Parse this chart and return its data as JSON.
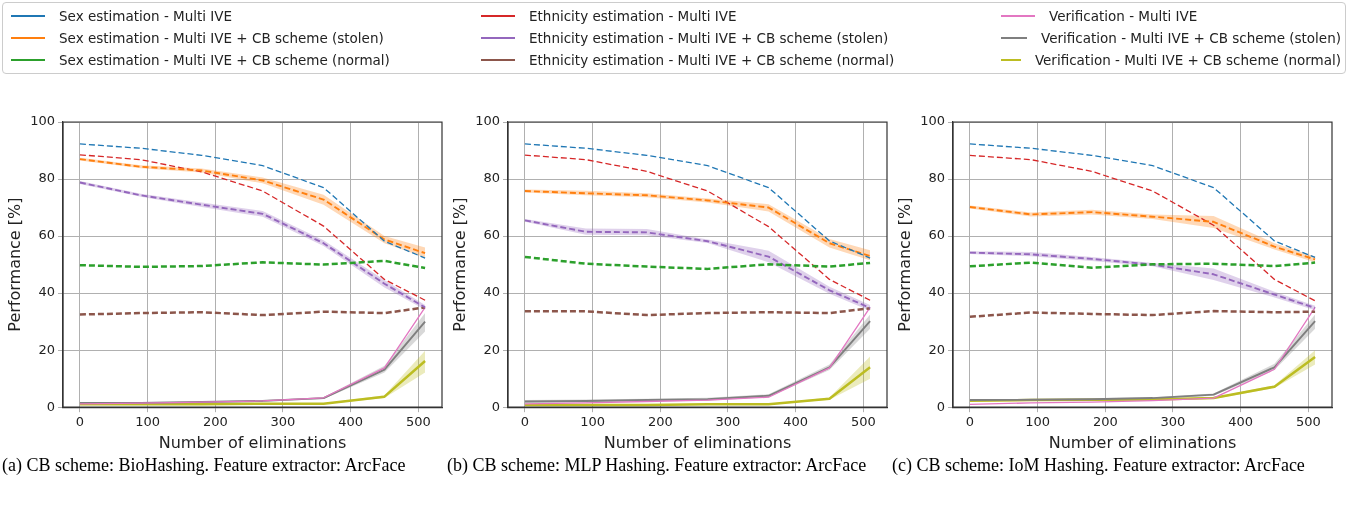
{
  "chart_data": [
    {
      "type": "line",
      "xlabel": "Number of eliminations",
      "ylabel": "Performance [%]",
      "x": [
        0,
        90,
        180,
        270,
        360,
        450,
        510
      ],
      "xlim": [
        -25,
        535
      ],
      "xticks": [
        0,
        100,
        200,
        300,
        400,
        500
      ],
      "ylim": [
        0,
        100
      ],
      "yticks": [
        0,
        20,
        40,
        60,
        80,
        100
      ],
      "grid": true,
      "legend": "top",
      "marker": "none",
      "annotations": [
        "(a) CB scheme: BioHashing. Feature extractor: ArcFace"
      ],
      "series": [
        {
          "name": "Sex estimation - Multi IVE",
          "color": "#1f77b4",
          "line_style": "dashed",
          "values": [
            92.3,
            90.8,
            88.3,
            84.7,
            77,
            58.2,
            52.3
          ]
        },
        {
          "name": "Sex estimation - Multi IVE + CB scheme (stolen)",
          "color": "#ff7f0e",
          "line_style": "dashed",
          "values": [
            87,
            84.3,
            83,
            79.5,
            72.8,
            58.8,
            54
          ],
          "lower": [
            86.5,
            83.8,
            82.3,
            78.5,
            71,
            57.5,
            52.5
          ],
          "upper": [
            87.5,
            84.8,
            83.7,
            80.5,
            74.5,
            60,
            56
          ]
        },
        {
          "name": "Sex estimation - Multi IVE + CB scheme (normal)",
          "color": "#2ca02c",
          "line_style": "dashed",
          "values": [
            49.8,
            49.2,
            49.5,
            50.8,
            50,
            51.3,
            48.8
          ]
        },
        {
          "name": "Ethnicity estimation - Multi IVE",
          "color": "#d62728",
          "line_style": "dashed",
          "values": [
            88.5,
            86.8,
            82.5,
            75.8,
            63.5,
            44.8,
            37.5
          ]
        },
        {
          "name": "Ethnicity estimation - Multi IVE + CB scheme (stolen)",
          "color": "#9467bd",
          "line_style": "dashed",
          "values": [
            78.8,
            74.3,
            71,
            67.8,
            57.5,
            43.3,
            35
          ],
          "lower": [
            78.3,
            73.8,
            70.2,
            66.8,
            56.5,
            42,
            34.2
          ],
          "upper": [
            79.3,
            74.8,
            71.8,
            68.8,
            58.5,
            44.6,
            35.8
          ]
        },
        {
          "name": "Ethnicity estimation - Multi IVE + CB scheme (normal)",
          "color": "#8c564b",
          "line_style": "dashed",
          "values": [
            32.5,
            33,
            33.3,
            32.3,
            33.5,
            33,
            35
          ]
        },
        {
          "name": "Verification - Multi IVE",
          "color": "#e377c2",
          "line_style": "solid",
          "values": [
            1.2,
            1.4,
            1.8,
            2.2,
            3.3,
            13.8,
            35
          ]
        },
        {
          "name": "Verification - Multi IVE + CB scheme (stolen)",
          "color": "#7f7f7f",
          "line_style": "solid",
          "values": [
            1.5,
            1.5,
            1.8,
            2.2,
            3.2,
            13.2,
            30
          ],
          "lower": [
            1.2,
            1.2,
            1.5,
            1.9,
            2.9,
            12.2,
            26.5
          ],
          "upper": [
            1.8,
            1.8,
            2.1,
            2.5,
            3.5,
            14.5,
            33
          ]
        },
        {
          "name": "Verification - Multi IVE + CB scheme (normal)",
          "color": "#bcbd22",
          "line_style": "solid",
          "values": [
            1,
            1,
            1,
            1.2,
            1.2,
            3.7,
            16.2
          ],
          "lower": [
            0.8,
            0.8,
            0.8,
            1,
            1,
            3.2,
            12.2
          ],
          "upper": [
            1.2,
            1.2,
            1.2,
            1.4,
            1.4,
            4.2,
            19.8
          ]
        }
      ]
    },
    {
      "type": "line",
      "xlabel": "Number of eliminations",
      "ylabel": "Performance [%]",
      "x": [
        0,
        90,
        180,
        270,
        360,
        450,
        510
      ],
      "xlim": [
        -25,
        535
      ],
      "xticks": [
        0,
        100,
        200,
        300,
        400,
        500
      ],
      "ylim": [
        0,
        100
      ],
      "yticks": [
        0,
        20,
        40,
        60,
        80,
        100
      ],
      "grid": true,
      "marker": "none",
      "annotations": [
        "(b) CB scheme: MLP Hashing. Feature extractor: ArcFace"
      ],
      "series": [
        {
          "color": "#1f77b4",
          "line_style": "dashed",
          "values": [
            92.3,
            90.8,
            88.3,
            84.7,
            77,
            58.3,
            52.3
          ]
        },
        {
          "color": "#ff7f0e",
          "line_style": "dashed",
          "values": [
            75.8,
            75,
            74.3,
            72.5,
            70,
            57.5,
            53
          ],
          "lower": [
            75.3,
            74.3,
            73.6,
            71.8,
            68.6,
            56,
            51.5
          ],
          "upper": [
            76.3,
            75.9,
            75,
            73.2,
            71.2,
            59,
            55
          ]
        },
        {
          "color": "#2ca02c",
          "line_style": "dashed",
          "values": [
            52.7,
            50.3,
            49.3,
            48.5,
            50.1,
            49.3,
            50.6
          ]
        },
        {
          "color": "#d62728",
          "line_style": "dashed",
          "values": [
            88.4,
            86.8,
            82.7,
            75.8,
            63.3,
            44.8,
            37.5
          ]
        },
        {
          "color": "#9467bd",
          "line_style": "dashed",
          "values": [
            65.5,
            61.5,
            61.3,
            58.2,
            52.8,
            41,
            34.8
          ],
          "lower": [
            65,
            60.5,
            60.3,
            57.6,
            50.8,
            39.8,
            33.8
          ],
          "upper": [
            66,
            62.7,
            62.5,
            58.8,
            54.9,
            42.2,
            35.8
          ]
        },
        {
          "color": "#8c564b",
          "line_style": "dashed",
          "values": [
            33.6,
            33.6,
            32.3,
            33,
            33.3,
            33,
            34.7
          ]
        },
        {
          "color": "#e377c2",
          "line_style": "solid",
          "values": [
            1.2,
            1.5,
            2,
            2.5,
            3.5,
            13.8,
            35
          ]
        },
        {
          "color": "#7f7f7f",
          "line_style": "solid",
          "values": [
            2,
            2.2,
            2.5,
            2.8,
            4,
            14,
            30.2
          ],
          "lower": [
            1.5,
            1.7,
            2,
            2.3,
            3.5,
            13,
            27.5
          ],
          "upper": [
            2.5,
            2.7,
            3,
            3.3,
            4.5,
            15,
            32.5
          ]
        },
        {
          "color": "#bcbd22",
          "line_style": "solid",
          "values": [
            0.8,
            0.8,
            0.8,
            1,
            1,
            3,
            14
          ],
          "lower": [
            0.6,
            0.6,
            0.6,
            0.8,
            0.8,
            2.6,
            10
          ],
          "upper": [
            1,
            1,
            1,
            1.2,
            1.2,
            3.4,
            17.8
          ]
        }
      ]
    },
    {
      "type": "line",
      "xlabel": "Number of eliminations",
      "ylabel": "Performance [%]",
      "x": [
        0,
        90,
        180,
        270,
        360,
        450,
        510
      ],
      "xlim": [
        -25,
        535
      ],
      "xticks": [
        0,
        100,
        200,
        300,
        400,
        500
      ],
      "ylim": [
        0,
        100
      ],
      "yticks": [
        0,
        20,
        40,
        60,
        80,
        100
      ],
      "grid": true,
      "marker": "none",
      "annotations": [
        "(c) CB scheme: IoM Hashing. Feature extractor: ArcFace"
      ],
      "series": [
        {
          "color": "#1f77b4",
          "line_style": "dashed",
          "values": [
            92.3,
            90.8,
            88.3,
            84.7,
            77,
            58.3,
            52.5
          ]
        },
        {
          "color": "#ff7f0e",
          "line_style": "dashed",
          "values": [
            70.2,
            67.6,
            68.4,
            66.8,
            65,
            56.3,
            51.8
          ],
          "lower": [
            69.7,
            66.9,
            67.6,
            66,
            62.8,
            55.3,
            50.8
          ],
          "upper": [
            70.7,
            68.3,
            69.2,
            67.6,
            67,
            57.5,
            52.8
          ]
        },
        {
          "color": "#2ca02c",
          "line_style": "dashed",
          "values": [
            49.4,
            50.7,
            48.9,
            50.1,
            50.3,
            49.5,
            50.7
          ]
        },
        {
          "color": "#d62728",
          "line_style": "dashed",
          "values": [
            88.3,
            86.8,
            82.7,
            75.8,
            63.8,
            44.8,
            37.3
          ]
        },
        {
          "color": "#9467bd",
          "line_style": "dashed",
          "values": [
            54.2,
            53.6,
            52,
            50,
            46.6,
            39.5,
            34.8
          ],
          "lower": [
            53.7,
            52.9,
            51.3,
            49.4,
            44.6,
            38.5,
            34
          ],
          "upper": [
            54.7,
            54.4,
            52.7,
            50.6,
            48.6,
            40.5,
            35.6
          ]
        },
        {
          "color": "#8c564b",
          "line_style": "dashed",
          "values": [
            31.7,
            33.2,
            32.7,
            32.3,
            33.7,
            33.3,
            33.5
          ]
        },
        {
          "color": "#e377c2",
          "line_style": "solid",
          "values": [
            1,
            1.5,
            1.8,
            2.3,
            3.2,
            13.3,
            35
          ]
        },
        {
          "color": "#7f7f7f",
          "line_style": "solid",
          "values": [
            2.5,
            2.6,
            2.8,
            3.2,
            4.4,
            14,
            30.2
          ],
          "lower": [
            2.2,
            2.3,
            2.5,
            2.9,
            4,
            13,
            27.5
          ],
          "upper": [
            2.8,
            2.9,
            3.1,
            3.5,
            4.8,
            15.2,
            32.5
          ]
        },
        {
          "color": "#bcbd22",
          "line_style": "solid",
          "values": [
            2.3,
            2.5,
            2.6,
            2.7,
            3.2,
            7.2,
            17.6
          ],
          "lower": [
            2,
            2.2,
            2.3,
            2.4,
            2.9,
            6.7,
            15
          ],
          "upper": [
            2.6,
            2.8,
            2.9,
            3,
            3.5,
            7.7,
            20
          ]
        }
      ]
    }
  ]
}
